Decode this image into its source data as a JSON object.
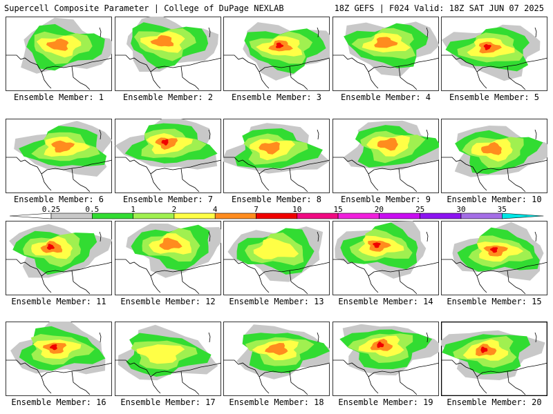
{
  "header": {
    "left_title": "Supercell Composite Parameter | College of DuPage NEXLAB",
    "right_title": "18Z GEFS | F024 Valid: 18Z SAT JUN 07 2025"
  },
  "panel_caption_prefix": "Ensemble Member: ",
  "members": [
    {
      "id": 1,
      "max_category": "orange"
    },
    {
      "id": 2,
      "max_category": "orange"
    },
    {
      "id": 3,
      "max_category": "red"
    },
    {
      "id": 4,
      "max_category": "orange"
    },
    {
      "id": 5,
      "max_category": "red"
    },
    {
      "id": 6,
      "max_category": "orange"
    },
    {
      "id": 7,
      "max_category": "red"
    },
    {
      "id": 8,
      "max_category": "orange"
    },
    {
      "id": 9,
      "max_category": "orange"
    },
    {
      "id": 10,
      "max_category": "orange"
    },
    {
      "id": 11,
      "max_category": "red"
    },
    {
      "id": 12,
      "max_category": "orange"
    },
    {
      "id": 13,
      "max_category": "yellow"
    },
    {
      "id": 14,
      "max_category": "red"
    },
    {
      "id": 15,
      "max_category": "red"
    },
    {
      "id": 16,
      "max_category": "red"
    },
    {
      "id": 17,
      "max_category": "yellow"
    },
    {
      "id": 18,
      "max_category": "orange"
    },
    {
      "id": 19,
      "max_category": "red"
    },
    {
      "id": 20,
      "max_category": "red"
    }
  ],
  "colorbar": {
    "labels": [
      "0.25",
      "0.5",
      "1",
      "2",
      "4",
      "7",
      "10",
      "15",
      "20",
      "25",
      "30",
      "35"
    ],
    "colors": [
      "#ffffff",
      "#c8c8c8",
      "#32dc32",
      "#a0f050",
      "#ffff46",
      "#ff8c1e",
      "#f00000",
      "#f00a82",
      "#f020dc",
      "#c80ef0",
      "#8c14f0",
      "#a46ee6",
      "#00e6e6"
    ]
  },
  "colors": {
    "low": "#c8c8c8",
    "green": "#32dc32",
    "lightgreen": "#a0f050",
    "yellow": "#ffff46",
    "orange": "#ff8c1e",
    "red": "#f00000"
  }
}
